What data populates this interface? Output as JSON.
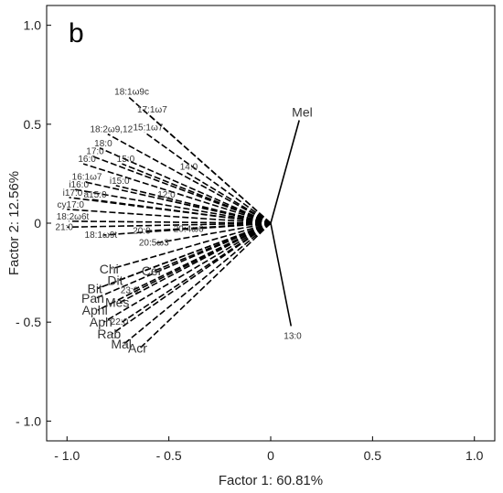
{
  "chart_data": {
    "type": "scatter",
    "panel_label": "b",
    "title": "",
    "xlabel": "Factor 1: 60.81%",
    "ylabel": "Factor 2: 12.56%",
    "xlim": [
      -1.1,
      1.1
    ],
    "ylim": [
      -1.1,
      1.1
    ],
    "x_ticks": [
      "- 1.0",
      "- 0.5",
      "0",
      "0.5",
      "1.0"
    ],
    "x_tick_values": [
      -1.0,
      -0.5,
      0,
      0.5,
      1.0
    ],
    "y_ticks": [
      "1.0",
      "0.5",
      "0",
      "- 0.5",
      "- 1.0"
    ],
    "y_tick_values": [
      1.0,
      0.5,
      0,
      -0.5,
      -1.0
    ],
    "grid": false,
    "line_color": "#000000",
    "vectors": [
      {
        "label": "Mel",
        "x": 0.14,
        "y": 0.52,
        "style": "solid",
        "emphasis": "large"
      },
      {
        "label": "13:0",
        "x": 0.1,
        "y": -0.52,
        "style": "solid",
        "emphasis": "small"
      },
      {
        "label": "18:1ω9c",
        "x": -0.7,
        "y": 0.64,
        "style": "dashed",
        "emphasis": "small"
      },
      {
        "label": "17:1ω7",
        "x": -0.6,
        "y": 0.55,
        "style": "dashed",
        "emphasis": "small"
      },
      {
        "label": "15:1ω7",
        "x": -0.62,
        "y": 0.46,
        "style": "dashed",
        "emphasis": "small"
      },
      {
        "label": "18:2ω9,12",
        "x": -0.8,
        "y": 0.45,
        "style": "dashed",
        "emphasis": "small"
      },
      {
        "label": "18:0",
        "x": -0.84,
        "y": 0.38,
        "style": "dashed",
        "emphasis": "small"
      },
      {
        "label": "17:0",
        "x": -0.88,
        "y": 0.34,
        "style": "dashed",
        "emphasis": "small"
      },
      {
        "label": "15:0",
        "x": -0.73,
        "y": 0.3,
        "style": "dashed",
        "emphasis": "small"
      },
      {
        "label": "16:0",
        "x": -0.92,
        "y": 0.3,
        "style": "dashed",
        "emphasis": "small"
      },
      {
        "label": "14:0",
        "x": -0.42,
        "y": 0.26,
        "style": "dashed",
        "emphasis": "small"
      },
      {
        "label": "16:1ω7",
        "x": -0.92,
        "y": 0.21,
        "style": "dashed",
        "emphasis": "small"
      },
      {
        "label": "i15:0",
        "x": -0.76,
        "y": 0.19,
        "style": "dashed",
        "emphasis": "small"
      },
      {
        "label": "i16:0",
        "x": -0.96,
        "y": 0.17,
        "style": "dashed",
        "emphasis": "small"
      },
      {
        "label": "12:0",
        "x": -0.53,
        "y": 0.12,
        "style": "dashed",
        "emphasis": "small"
      },
      {
        "label": "a15:0",
        "x": -0.88,
        "y": 0.12,
        "style": "dashed",
        "emphasis": "small"
      },
      {
        "label": "i17:0",
        "x": -0.99,
        "y": 0.13,
        "style": "dashed",
        "emphasis": "small"
      },
      {
        "label": "cy17:0",
        "x": -1.0,
        "y": 0.07,
        "style": "dashed",
        "emphasis": "small"
      },
      {
        "label": "18:2ω6t",
        "x": -0.99,
        "y": 0.01,
        "style": "dashed",
        "emphasis": "small"
      },
      {
        "label": "21:0",
        "x": -1.0,
        "y": -0.02,
        "style": "dashed",
        "emphasis": "small"
      },
      {
        "label": "18:1ω9t",
        "x": -0.82,
        "y": -0.06,
        "style": "dashed",
        "emphasis": "small"
      },
      {
        "label": "20:0",
        "x": -0.62,
        "y": -0.04,
        "style": "dashed",
        "emphasis": "small"
      },
      {
        "label": "20:4ω6",
        "x": -0.39,
        "y": -0.03,
        "style": "dashed",
        "emphasis": "small"
      },
      {
        "label": "20:5ω3",
        "x": -0.56,
        "y": -0.1,
        "style": "dashed",
        "emphasis": "small"
      },
      {
        "label": "Chi",
        "x": -0.78,
        "y": -0.23,
        "style": "dashed",
        "emphasis": "large"
      },
      {
        "label": "Cer",
        "x": -0.57,
        "y": -0.24,
        "style": "dashed",
        "emphasis": "large"
      },
      {
        "label": "Dit",
        "x": -0.75,
        "y": -0.29,
        "style": "dashed",
        "emphasis": "large"
      },
      {
        "label": "Bit",
        "x": -0.85,
        "y": -0.33,
        "style": "dashed",
        "emphasis": "large"
      },
      {
        "label": "23:0",
        "x": -0.68,
        "y": -0.34,
        "style": "dashed",
        "emphasis": "small"
      },
      {
        "label": "Pan",
        "x": -0.86,
        "y": -0.38,
        "style": "dashed",
        "emphasis": "large"
      },
      {
        "label": "Mes",
        "x": -0.74,
        "y": -0.4,
        "style": "dashed",
        "emphasis": "large"
      },
      {
        "label": "Aphl",
        "x": -0.85,
        "y": -0.44,
        "style": "dashed",
        "emphasis": "large"
      },
      {
        "label": "Aph",
        "x": -0.82,
        "y": -0.5,
        "style": "dashed",
        "emphasis": "large"
      },
      {
        "label": "22:0",
        "x": -0.73,
        "y": -0.5,
        "style": "dashed",
        "emphasis": "small"
      },
      {
        "label": "Rab",
        "x": -0.78,
        "y": -0.56,
        "style": "dashed",
        "emphasis": "large"
      },
      {
        "label": "Mal",
        "x": -0.72,
        "y": -0.61,
        "style": "dashed",
        "emphasis": "large"
      },
      {
        "label": "Acr",
        "x": -0.64,
        "y": -0.63,
        "style": "dashed",
        "emphasis": "large"
      }
    ]
  }
}
